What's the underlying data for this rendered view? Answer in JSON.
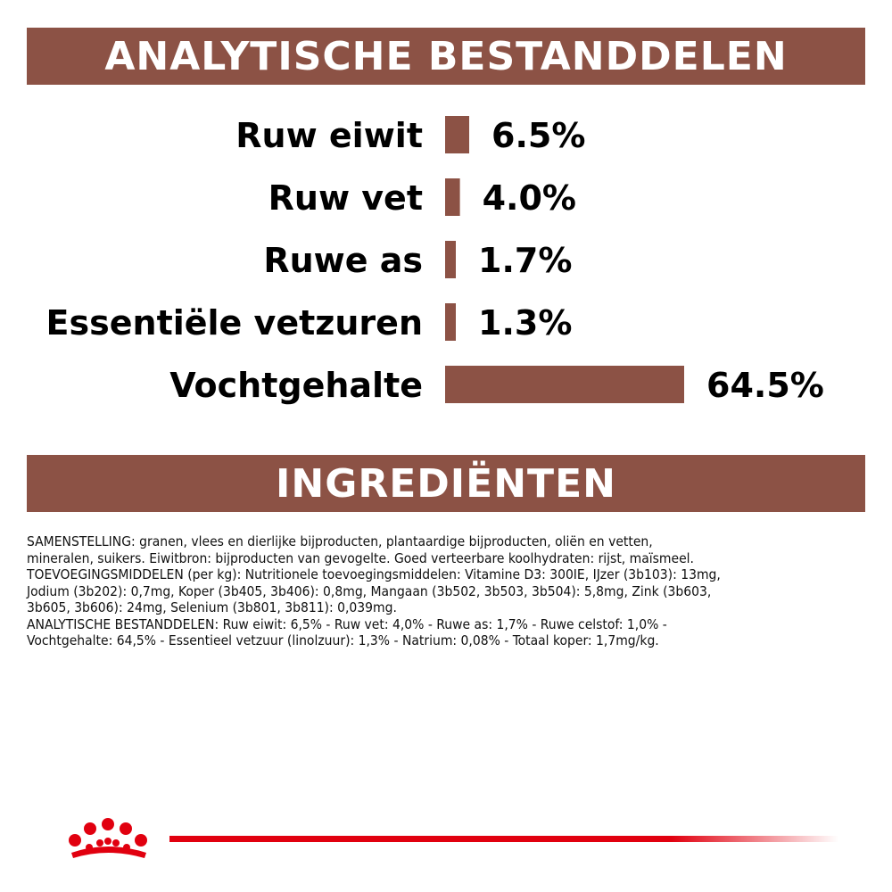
{
  "header": {
    "title": "ANALYTISCHE BESTANDDELEN"
  },
  "chart_data": {
    "type": "bar",
    "orientation": "horizontal",
    "categories": [
      "Ruw eiwit",
      "Ruw vet",
      "Ruwe as",
      "Essentiële vetzuren",
      "Vochtgehalte"
    ],
    "values": [
      6.5,
      4.0,
      1.7,
      1.3,
      64.5
    ],
    "value_labels": [
      "6.5%",
      "4.0%",
      "1.7%",
      "1.3%",
      "64.5%"
    ],
    "unit": "%",
    "bar_color": "#8c5245",
    "grid": false,
    "legend": "none"
  },
  "ingredients": {
    "title": "INGREDIËNTEN",
    "lines": [
      "SAMENSTELLING: granen, vlees en dierlijke bijproducten, plantaardige bijproducten, oliën en vetten,",
      "mineralen, suikers. Eiwitbron: bijproducten van gevogelte. Goed verteerbare koolhydraten: rijst, maïsmeel.",
      "TOEVOEGINGSMIDDELEN (per kg): Nutritionele toevoegingsmiddelen: Vitamine D3: 300IE, IJzer (3b103): 13mg,",
      "Jodium (3b202): 0,7mg, Koper (3b405, 3b406): 0,8mg, Mangaan (3b502, 3b503, 3b504): 5,8mg, Zink (3b603,",
      "3b605, 3b606): 24mg, Selenium (3b801, 3b811): 0,039mg.",
      "ANALYTISCHE BESTANDDELEN: Ruw eiwit: 6,5% - Ruw vet: 4,0% - Ruwe as: 1,7% - Ruwe celstof: 1,0% -",
      "Vochtgehalte: 64,5% - Essentieel vetzuur (linolzuur): 1,3% - Natrium: 0,08% - Totaal koper: 1,7mg/kg."
    ]
  },
  "colors": {
    "banner": "#8c5245",
    "brand_red": "#e1000f"
  },
  "icons": {
    "logo": "royal-canin-crown-icon"
  }
}
